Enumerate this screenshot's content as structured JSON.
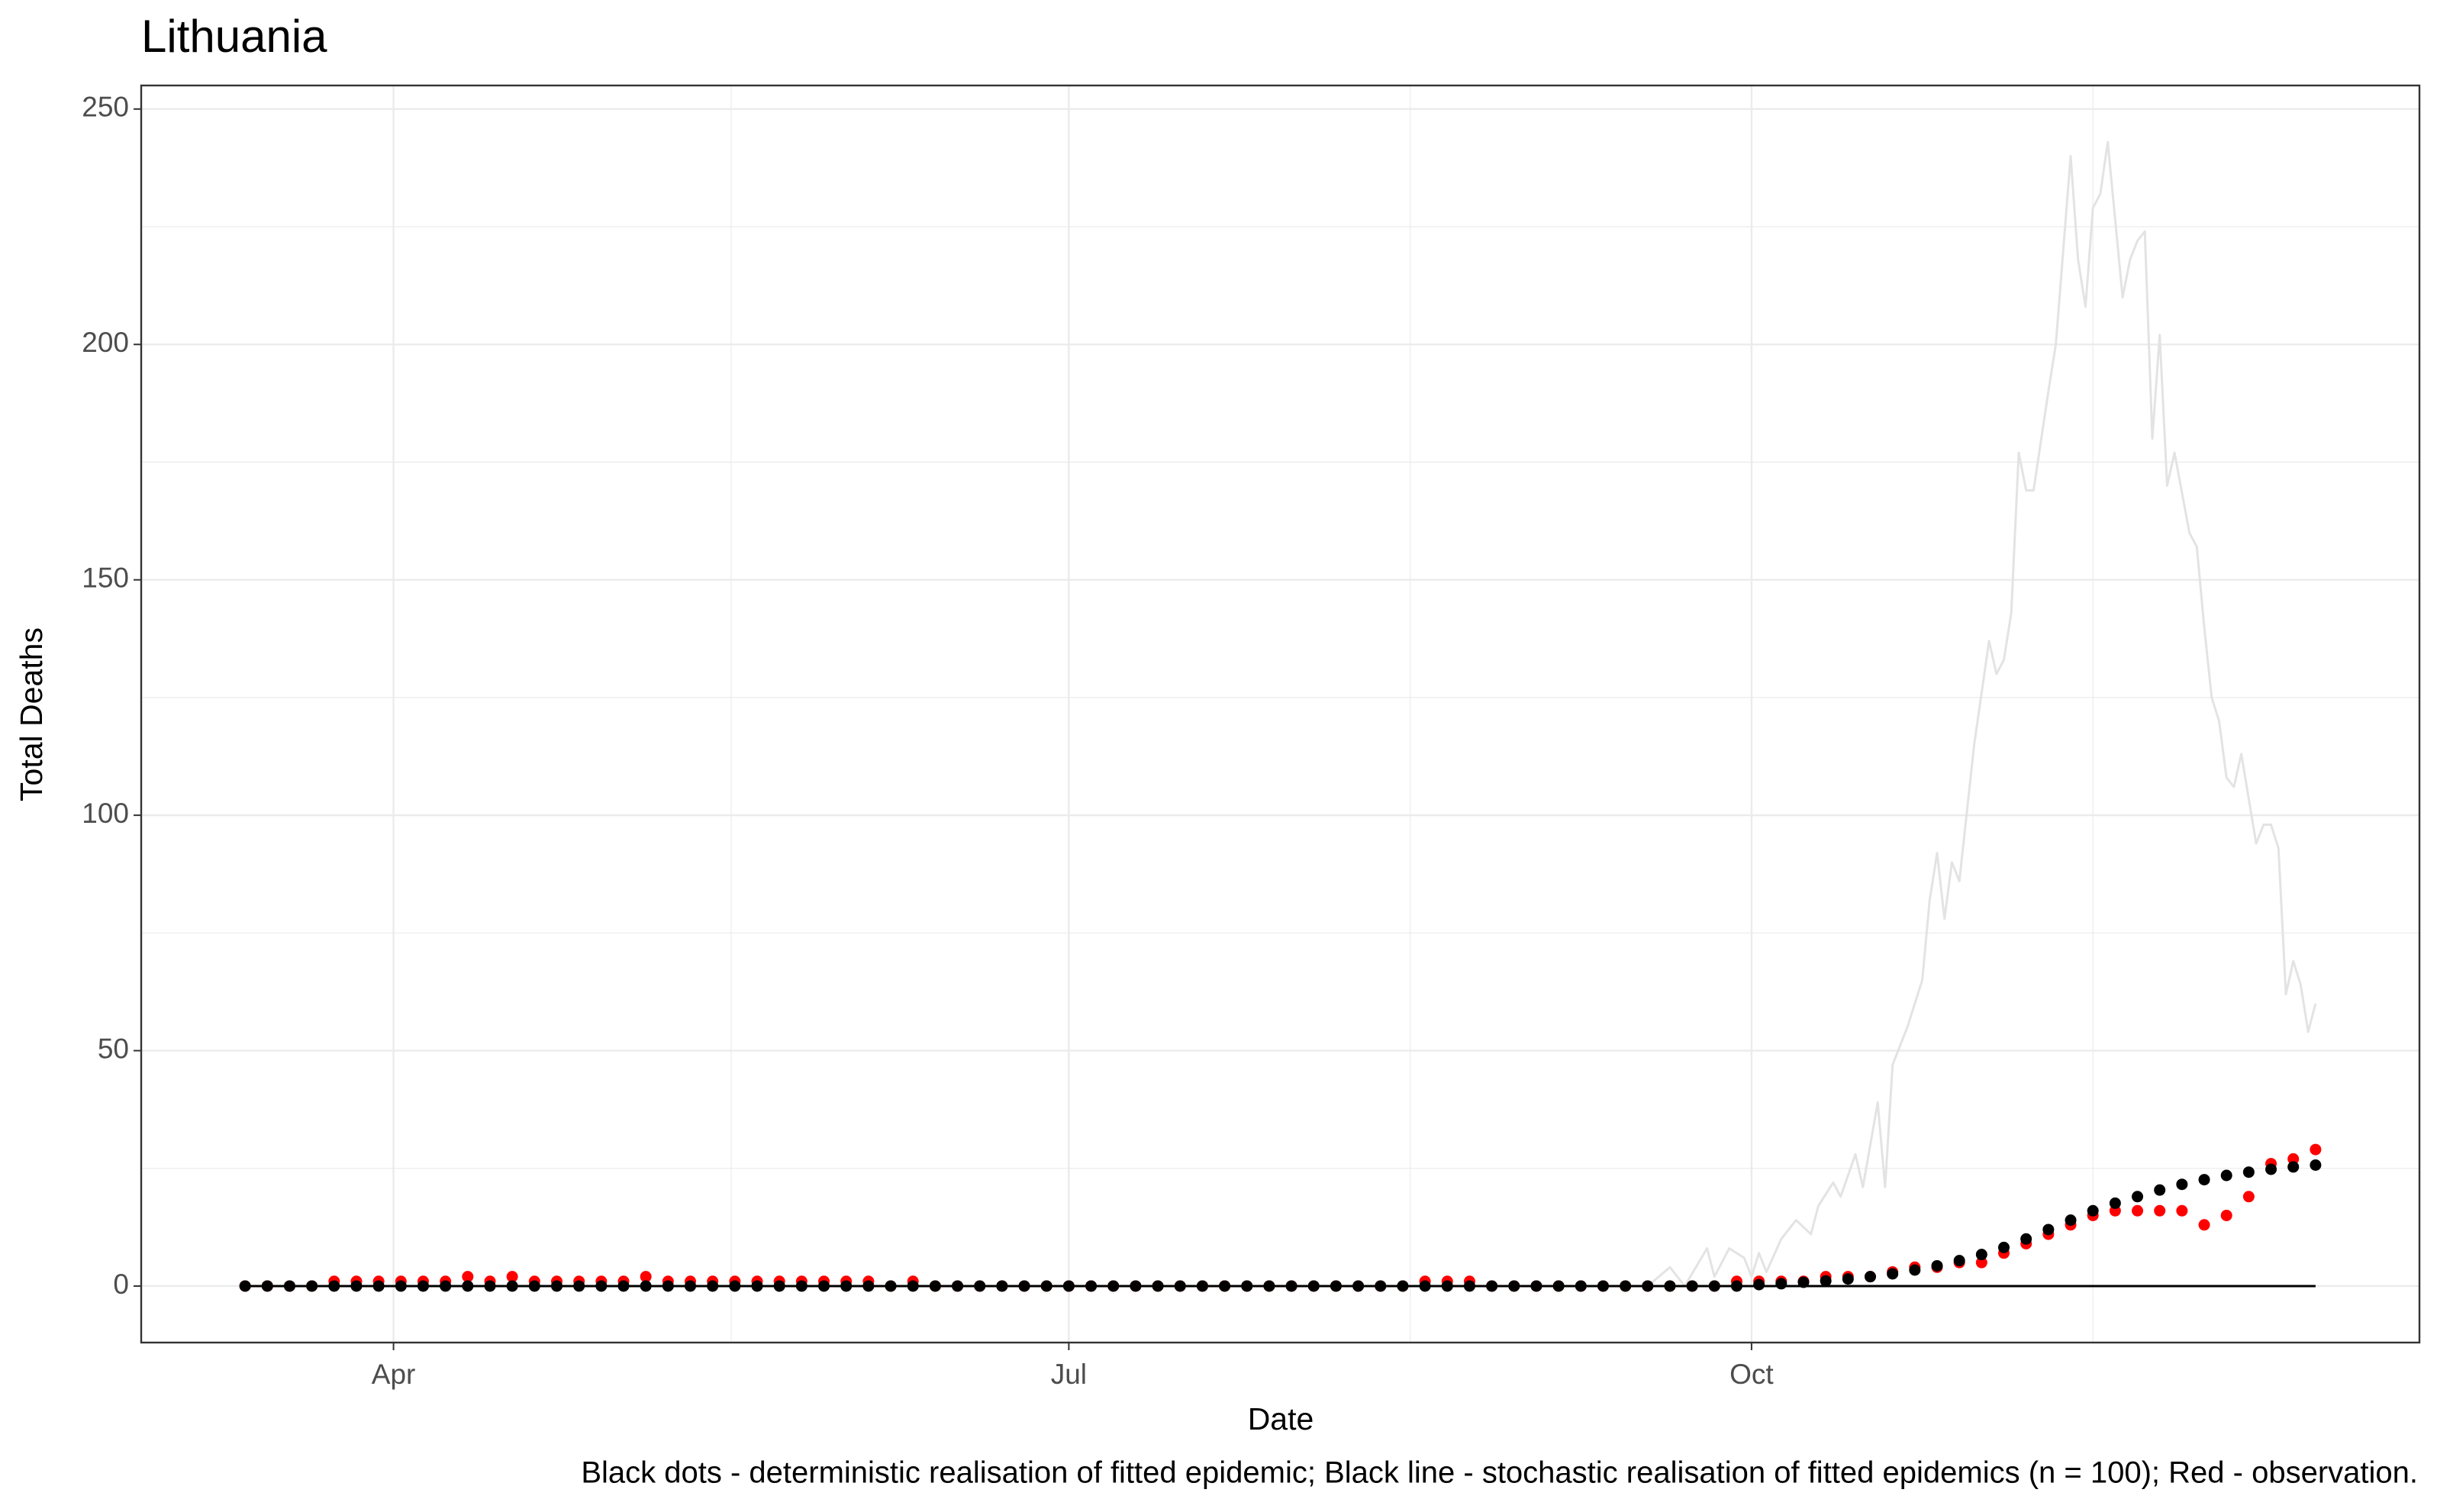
{
  "chart_data": {
    "type": "line",
    "title": "Lithuania",
    "x_label": "Date",
    "y_label": "Total Deaths",
    "caption": "Black dots - deterministic realisation of fitted epidemic; Black line - stochastic realisation of fitted epidemics (n = 100); Red - observation.",
    "xlim": [
      58,
      365
    ],
    "ylim": [
      -12,
      255
    ],
    "xticks": [
      {
        "value": 92,
        "label": "Apr"
      },
      {
        "value": 183,
        "label": "Jul"
      },
      {
        "value": 275,
        "label": "Oct"
      }
    ],
    "yticks": [
      0,
      50,
      100,
      150,
      200,
      250
    ],
    "x_minor_grid": [
      137.5,
      229,
      321
    ],
    "y_minor_grid": [
      25,
      75,
      125,
      175,
      225
    ],
    "grid": true,
    "series": [
      {
        "type": "line",
        "color": "#e3e3e3",
        "x": [
          72,
          261,
          264,
          266,
          269,
          270,
          272,
          274,
          275,
          276,
          277,
          279,
          281,
          283,
          284,
          286,
          287,
          289,
          290,
          292,
          293,
          294,
          296,
          298,
          299,
          300,
          301,
          302,
          303,
          305,
          307,
          308,
          309,
          310,
          311,
          312,
          313,
          315,
          316,
          318,
          319,
          320,
          321,
          322,
          323,
          325,
          326,
          327,
          328,
          329,
          330,
          331,
          332,
          334,
          335,
          336,
          337,
          338,
          339,
          340,
          341,
          343,
          344,
          345,
          346,
          347,
          348,
          349,
          350,
          351
        ],
        "values": [
          0,
          0,
          4,
          0,
          8,
          2,
          8,
          6,
          2,
          7,
          3,
          10,
          14,
          11,
          17,
          22,
          19,
          28,
          21,
          39,
          21,
          47,
          55,
          65,
          82,
          92,
          78,
          90,
          86,
          115,
          137,
          130,
          133,
          143,
          177,
          169,
          169,
          190,
          200,
          240,
          218,
          208,
          229,
          232,
          243,
          210,
          218,
          222,
          224,
          180,
          202,
          170,
          177,
          160,
          157,
          140,
          125,
          120,
          108,
          106,
          113,
          94,
          98,
          98,
          93,
          62,
          69,
          64,
          54,
          60
        ]
      },
      {
        "type": "line",
        "color": "#000000",
        "x": [
          72,
          351
        ],
        "values": [
          0,
          0
        ]
      },
      {
        "type": "scatter",
        "color": "#ff0000",
        "x": [
          72,
          75,
          78,
          81,
          84,
          87,
          90,
          93,
          96,
          99,
          102,
          105,
          108,
          111,
          114,
          117,
          120,
          123,
          126,
          129,
          132,
          135,
          138,
          141,
          144,
          147,
          150,
          153,
          156,
          159,
          162,
          165,
          168,
          171,
          174,
          177,
          180,
          183,
          186,
          189,
          192,
          195,
          198,
          201,
          204,
          207,
          210,
          213,
          216,
          219,
          222,
          225,
          228,
          231,
          234,
          237,
          240,
          243,
          246,
          249,
          252,
          255,
          258,
          261,
          264,
          267,
          270,
          273,
          276,
          279,
          282,
          285,
          288,
          291,
          294,
          297,
          300,
          303,
          306,
          309,
          312,
          315,
          318,
          321,
          324,
          327,
          330,
          333,
          336,
          339,
          342,
          345,
          348,
          351
        ],
        "values": [
          0,
          0,
          0,
          0,
          1,
          1,
          1,
          1,
          1,
          1,
          2,
          1,
          2,
          1,
          1,
          1,
          1,
          1,
          2,
          1,
          1,
          1,
          1,
          1,
          1,
          1,
          1,
          1,
          1,
          0,
          1,
          0,
          0,
          0,
          0,
          0,
          0,
          0,
          0,
          0,
          0,
          0,
          0,
          0,
          0,
          0,
          0,
          0,
          0,
          0,
          0,
          0,
          0,
          1,
          1,
          1,
          0,
          0,
          0,
          0,
          0,
          0,
          0,
          0,
          0,
          0,
          0,
          1,
          1,
          1,
          1,
          2,
          2,
          2,
          3,
          4,
          4,
          5,
          5,
          7,
          9,
          11,
          13,
          15,
          16,
          16,
          16,
          16,
          13,
          15,
          19,
          26,
          27,
          29
        ]
      },
      {
        "type": "scatter",
        "color": "#000000",
        "x": [
          72,
          75,
          78,
          81,
          84,
          87,
          90,
          93,
          96,
          99,
          102,
          105,
          108,
          111,
          114,
          117,
          120,
          123,
          126,
          129,
          132,
          135,
          138,
          141,
          144,
          147,
          150,
          153,
          156,
          159,
          162,
          165,
          168,
          171,
          174,
          177,
          180,
          183,
          186,
          189,
          192,
          195,
          198,
          201,
          204,
          207,
          210,
          213,
          216,
          219,
          222,
          225,
          228,
          231,
          234,
          237,
          240,
          243,
          246,
          249,
          252,
          255,
          258,
          261,
          264,
          267,
          270,
          273,
          276,
          279,
          282,
          285,
          288,
          291,
          294,
          297,
          300,
          303,
          306,
          309,
          312,
          315,
          318,
          321,
          324,
          327,
          330,
          333,
          336,
          339,
          342,
          345,
          348,
          351
        ],
        "values": [
          0,
          0,
          0,
          0,
          0,
          0,
          0,
          0,
          0,
          0,
          0,
          0,
          0,
          0,
          0,
          0,
          0,
          0,
          0,
          0,
          0,
          0,
          0,
          0,
          0,
          0,
          0,
          0,
          0,
          0,
          0,
          0,
          0,
          0,
          0,
          0,
          0,
          0,
          0,
          0,
          0,
          0,
          0,
          0,
          0,
          0,
          0,
          0,
          0,
          0,
          0,
          0,
          0,
          0,
          0,
          0,
          0,
          0,
          0,
          0,
          0,
          0,
          0,
          0,
          0,
          0,
          0,
          0,
          0.3,
          0.5,
          0.8,
          1.1,
          1.5,
          2,
          2.6,
          3.4,
          4.3,
          5.4,
          6.7,
          8.2,
          10,
          12,
          14,
          16,
          17.6,
          19,
          20.4,
          21.6,
          22.6,
          23.5,
          24.2,
          24.8,
          25.3,
          25.7
        ]
      }
    ]
  }
}
